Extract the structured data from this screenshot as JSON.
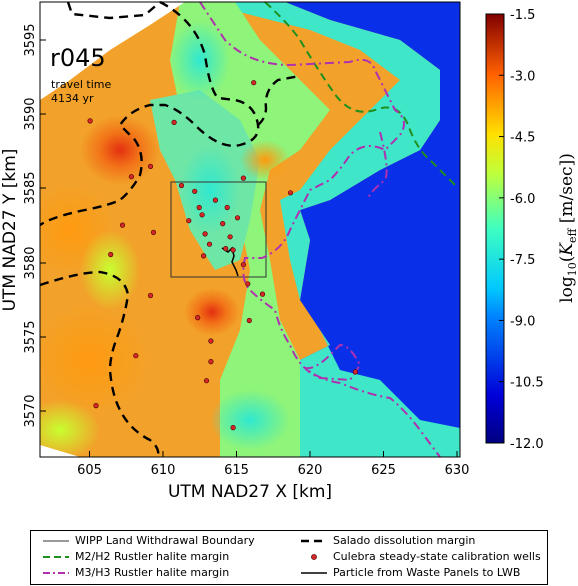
{
  "map": {
    "realization": "r045",
    "travel_time_label": "travel time",
    "travel_time_value": "4134 yr",
    "xlabel": "UTM NAD27 X [km]",
    "ylabel": "UTM NAD27 Y [km]",
    "x_ticks": [
      "605",
      "610",
      "615",
      "620",
      "625",
      "630"
    ],
    "y_ticks": [
      "3570",
      "3575",
      "3580",
      "3585",
      "3590",
      "3595"
    ],
    "xlim": [
      601.5,
      630
    ],
    "ylim": [
      3566.5,
      3597.5
    ]
  },
  "colorbar": {
    "label": "log10(Keff [m/sec])",
    "ticks": [
      "-1.5",
      "-3.0",
      "-4.5",
      "-6.0",
      "-7.5",
      "-9.0",
      "-10.5",
      "-12.0"
    ],
    "min": -12.0,
    "max": -1.5
  },
  "legend": {
    "items": [
      {
        "label": "WIPP Land Withdrawal Boundary",
        "style": "thin-solid",
        "color": "#333333"
      },
      {
        "label": "Salado dissolution margin",
        "style": "thick-dashed",
        "color": "#000000"
      },
      {
        "label": "M2/H2 Rustler halite margin",
        "style": "dashed",
        "color": "#1f8f1f"
      },
      {
        "label": "Culebra steady-state calibration wells",
        "style": "dot",
        "color": "#d62728"
      },
      {
        "label": "M3/H3 Rustler halite margin",
        "style": "dash-dot",
        "color": "#b030b0"
      },
      {
        "label": "Particle from Waste Panels to LWB",
        "style": "solid",
        "color": "#000000"
      }
    ]
  },
  "wells": [
    [
      604.9,
      3589.4
    ],
    [
      606.3,
      3580.3
    ],
    [
      607.1,
      3582.3
    ],
    [
      607.7,
      3585.6
    ],
    [
      608.0,
      3573.4
    ],
    [
      609.0,
      3586.3
    ],
    [
      609.2,
      3581.8
    ],
    [
      610.6,
      3589.3
    ],
    [
      611.1,
      3585.0
    ],
    [
      611.6,
      3582.6
    ],
    [
      612.0,
      3584.6
    ],
    [
      612.3,
      3583.5
    ],
    [
      612.5,
      3583.0
    ],
    [
      612.7,
      3581.7
    ],
    [
      613.0,
      3581.0
    ],
    [
      613.4,
      3584.0
    ],
    [
      613.9,
      3582.4
    ],
    [
      614.2,
      3583.5
    ],
    [
      614.4,
      3581.5
    ],
    [
      614.6,
      3580.6
    ],
    [
      614.9,
      3582.8
    ],
    [
      615.3,
      3585.5
    ],
    [
      615.3,
      3579.6
    ],
    [
      615.7,
      3575.8
    ],
    [
      616.0,
      3592.0
    ],
    [
      616.6,
      3577.6
    ],
    [
      613.1,
      3574.4
    ],
    [
      612.2,
      3576.0
    ],
    [
      613.1,
      3573.0
    ],
    [
      612.8,
      3571.7
    ],
    [
      605.3,
      3570.0
    ],
    [
      614.6,
      3568.5
    ],
    [
      622.9,
      3572.3
    ],
    [
      618.5,
      3584.5
    ],
    [
      614.1,
      3580.7
    ],
    [
      609.0,
      3577.5
    ],
    [
      612.6,
      3580.2
    ],
    [
      615.6,
      3578.3
    ]
  ]
}
